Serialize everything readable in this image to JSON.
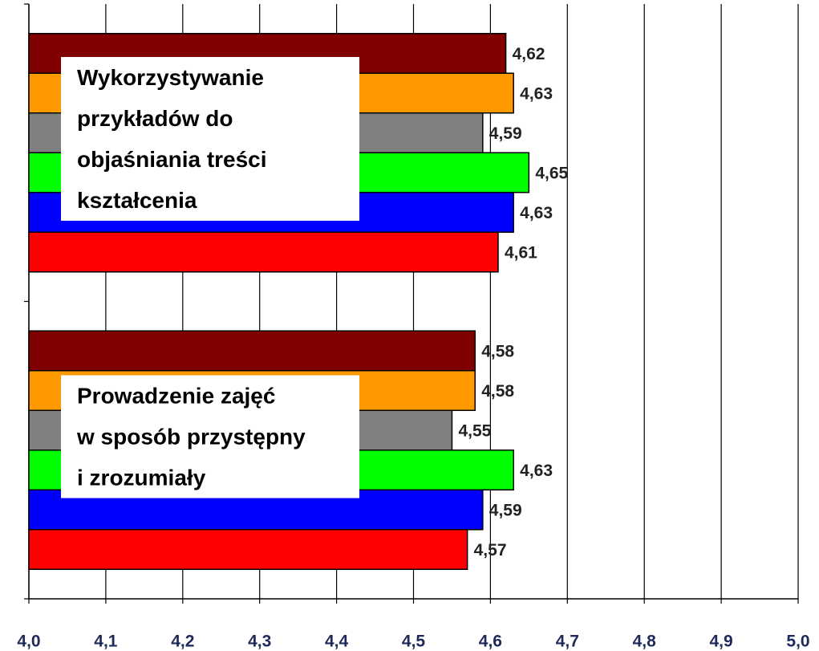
{
  "chart_data": {
    "type": "bar",
    "orientation": "horizontal",
    "categories": [
      "Wykorzystywanie\nprzykładów do\nobjaśniania treści\nkształcenia",
      "Prowadzenie zajęć\nw sposób przystępny\ni zrozumiały"
    ],
    "series": [
      {
        "color": "#800000",
        "values": [
          4.62,
          4.58
        ],
        "value_labels": [
          "4,62",
          "4,58"
        ]
      },
      {
        "color": "#ff9900",
        "values": [
          4.63,
          4.58
        ],
        "value_labels": [
          "4,63",
          "4,58"
        ]
      },
      {
        "color": "#808080",
        "values": [
          4.59,
          4.55
        ],
        "value_labels": [
          "4,59",
          "4,55"
        ]
      },
      {
        "color": "#00ff00",
        "values": [
          4.65,
          4.63
        ],
        "value_labels": [
          "4,65",
          "4,63"
        ]
      },
      {
        "color": "#0000ff",
        "values": [
          4.63,
          4.59
        ],
        "value_labels": [
          "4,63",
          "4,59"
        ]
      },
      {
        "color": "#ff0000",
        "values": [
          4.61,
          4.57
        ],
        "value_labels": [
          "4,61",
          "4,57"
        ]
      }
    ],
    "xlim": [
      4.0,
      5.0
    ],
    "xticks": [
      {
        "value": 4.0,
        "label": "4,0"
      },
      {
        "value": 4.1,
        "label": "4,1"
      },
      {
        "value": 4.2,
        "label": "4,2"
      },
      {
        "value": 4.3,
        "label": "4,3"
      },
      {
        "value": 4.4,
        "label": "4,4"
      },
      {
        "value": 4.5,
        "label": "4,5"
      },
      {
        "value": 4.6,
        "label": "4,6"
      },
      {
        "value": 4.7,
        "label": "4,7"
      },
      {
        "value": 4.8,
        "label": "4,8"
      },
      {
        "value": 4.9,
        "label": "4,9"
      },
      {
        "value": 5.0,
        "label": "5,0"
      }
    ],
    "grid": true
  }
}
